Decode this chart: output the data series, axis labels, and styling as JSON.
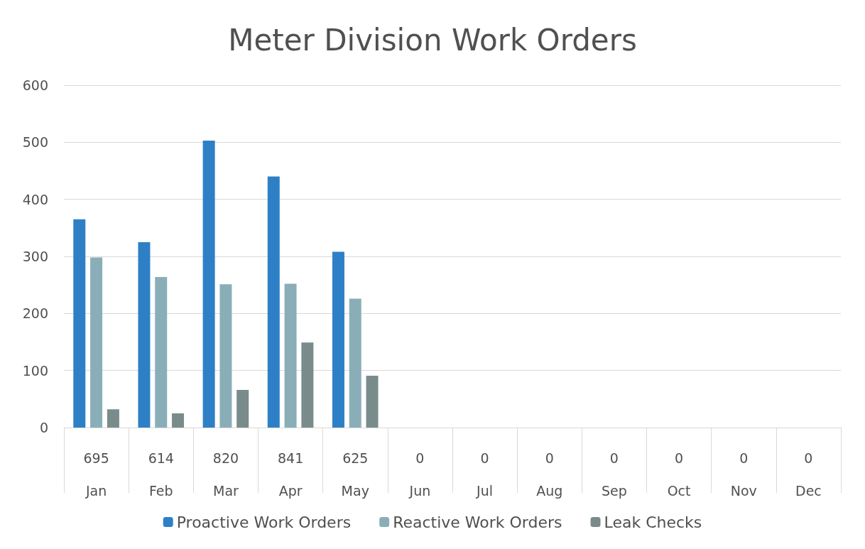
{
  "chart_data": {
    "type": "bar",
    "title": "Meter Division Work Orders",
    "categories": [
      "Jan",
      "Feb",
      "Mar",
      "Apr",
      "May",
      "Jun",
      "Jul",
      "Aug",
      "Sep",
      "Oct",
      "Nov",
      "Dec"
    ],
    "series": [
      {
        "name": "Proactive Work Orders",
        "color": "#2e80c6",
        "values": [
          365,
          325,
          503,
          440,
          308,
          0,
          0,
          0,
          0,
          0,
          0,
          0
        ]
      },
      {
        "name": "Reactive Work Orders",
        "color": "#8aaeb8",
        "values": [
          298,
          264,
          251,
          252,
          226,
          0,
          0,
          0,
          0,
          0,
          0,
          0
        ]
      },
      {
        "name": "Leak Checks",
        "color": "#7a8b8b",
        "values": [
          32,
          25,
          66,
          149,
          91,
          0,
          0,
          0,
          0,
          0,
          0,
          0
        ]
      }
    ],
    "totals": [
      "695",
      "614",
      "820",
      "841",
      "625",
      "0",
      "0",
      "0",
      "0",
      "0",
      "0",
      "0"
    ],
    "ylim": [
      0,
      600
    ],
    "yticks": [
      0,
      100,
      200,
      300,
      400,
      500,
      600
    ],
    "grid": "y",
    "legend": "bottom"
  }
}
